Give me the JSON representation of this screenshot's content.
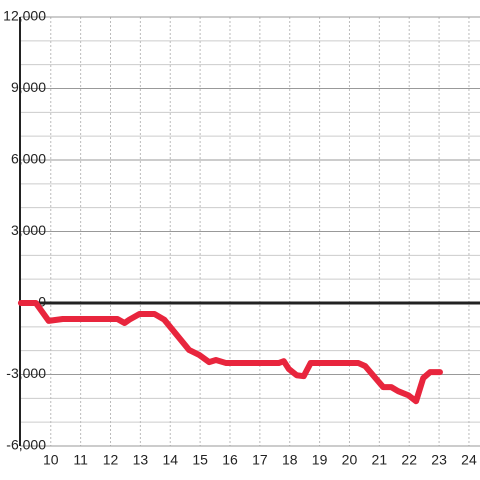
{
  "chart_data": {
    "type": "line",
    "x": [
      9,
      9.5,
      9.93,
      10.4,
      10.97,
      12.23,
      12.47,
      12.63,
      12.97,
      13.47,
      13.8,
      14.63,
      14.97,
      15.3,
      15.53,
      15.87,
      17.63,
      17.8,
      17.97,
      18.23,
      18.47,
      18.7,
      20.3,
      20.53,
      21.13,
      21.4,
      21.63,
      21.97,
      22.23,
      22.47,
      22.7,
      23.03
    ],
    "series": [
      {
        "color": "#e8253d",
        "values": [
          0,
          0,
          -750,
          -670,
          -670,
          -670,
          -840,
          -700,
          -460,
          -460,
          -700,
          -1970,
          -2180,
          -2480,
          -2390,
          -2520,
          -2520,
          -2440,
          -2770,
          -3030,
          -3070,
          -2520,
          -2520,
          -2650,
          -3530,
          -3530,
          -3700,
          -3870,
          -4120,
          -3150,
          -2900,
          -2900
        ]
      }
    ],
    "xlim": [
      8.97,
      24.37
    ],
    "xticks": [
      10,
      11,
      12,
      13,
      14,
      15,
      16,
      17,
      18,
      19,
      20,
      21,
      22,
      23,
      24
    ],
    "ylim": [
      -6000,
      12000
    ],
    "yticks": [
      {
        "value": -6000,
        "label": "-6,000"
      },
      {
        "value": -3000,
        "label": "-3,000"
      },
      0,
      {
        "value": 3000,
        "label": "3,000"
      },
      {
        "value": 6000,
        "label": "6,000"
      },
      {
        "value": 9000,
        "label": "9,000"
      },
      {
        "value": 12000,
        "label": "12,000"
      }
    ],
    "yminor": [
      -5000,
      -4000,
      -2000,
      -1000,
      1000,
      2000,
      4000,
      5000,
      7000,
      8000,
      10000,
      11000
    ],
    "grid": true
  }
}
